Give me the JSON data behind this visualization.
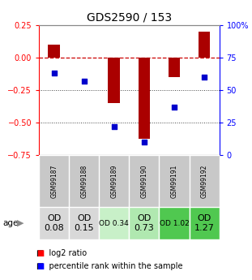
{
  "title": "GDS2590 / 153",
  "samples": [
    "GSM99187",
    "GSM99188",
    "GSM99189",
    "GSM99190",
    "GSM99191",
    "GSM99192"
  ],
  "log2_ratio": [
    0.1,
    0.0,
    -0.35,
    -0.62,
    -0.15,
    0.2
  ],
  "percentile_rank": [
    63,
    57,
    22,
    10,
    37,
    60
  ],
  "od_values": [
    "OD\n0.08",
    "OD\n0.15",
    "OD 0.34",
    "OD\n0.73",
    "OD 1.02",
    "OD\n1.27"
  ],
  "od_bg_colors": [
    "#d8d8d8",
    "#d8d8d8",
    "#c8f0c8",
    "#b0e8b0",
    "#50c850",
    "#50c850"
  ],
  "od_font_sizes": [
    8,
    8,
    6.5,
    8,
    6.5,
    8
  ],
  "ylim_left": [
    -0.75,
    0.25
  ],
  "ylim_right": [
    0,
    100
  ],
  "yticks_left": [
    0.25,
    0.0,
    -0.25,
    -0.5,
    -0.75
  ],
  "yticks_right": [
    100,
    75,
    50,
    25,
    0
  ],
  "bar_color": "#aa0000",
  "dot_color": "#0000cc",
  "ref_line_color": "#cc0000",
  "dotted_line_color": "#444444",
  "background_color": "#ffffff",
  "plot_bg": "#ffffff",
  "sample_bg": "#c8c8c8",
  "title_fontsize": 10,
  "axis_fontsize": 7,
  "legend_fontsize": 7
}
